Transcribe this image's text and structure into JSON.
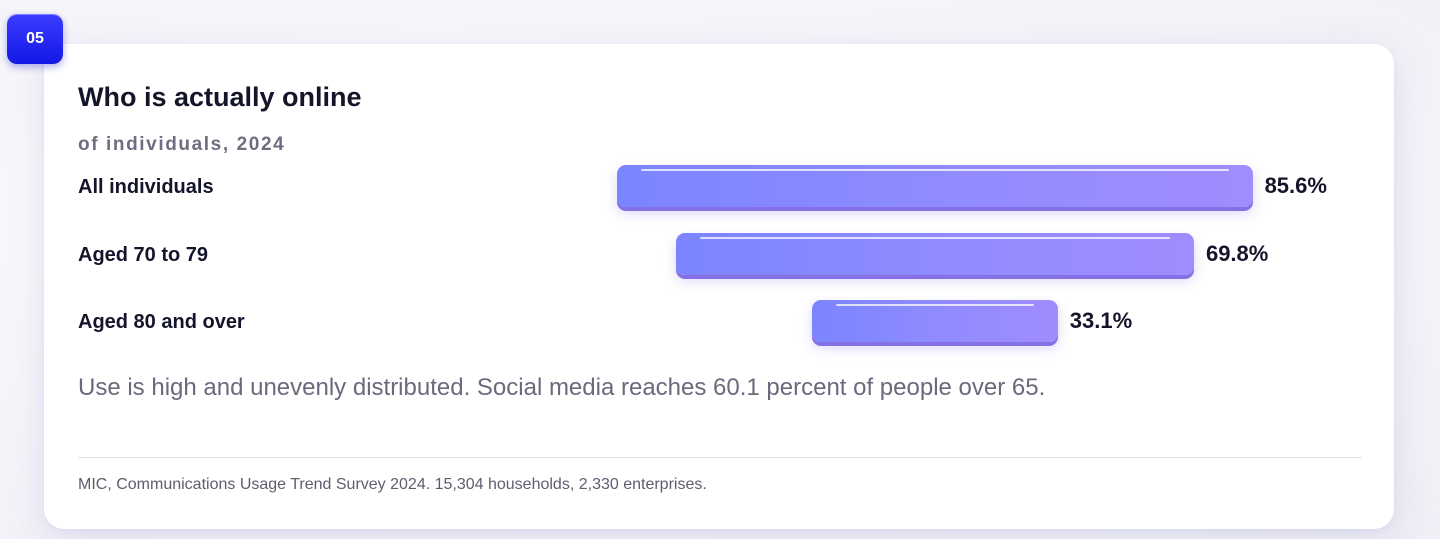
{
  "badge": "05",
  "note": "Use is high and unevenly distributed. Social media reaches 60.1 percent of people over 65.",
  "source": "MIC, Communications Usage Trend Survey 2024. 15,304 households, 2,330 enterprises.",
  "colors": {
    "badge": "#2326f0",
    "bar_start": "#7b84ff",
    "bar_end": "#a08cff",
    "text": "#14142b"
  },
  "chart_data": {
    "type": "bar",
    "orientation": "horizontal",
    "alignment": "centered",
    "title": "Who is actually online",
    "subtitle": "of individuals, 2024",
    "categories": [
      "All individuals",
      "Aged 70 to 79",
      "Aged 80 and over"
    ],
    "values": [
      85.6,
      69.8,
      33.1
    ],
    "value_labels": [
      "85.6%",
      "69.8%",
      "33.1%"
    ],
    "unit": "%",
    "xlim": [
      0,
      100
    ],
    "grid": false,
    "legend": "none"
  }
}
